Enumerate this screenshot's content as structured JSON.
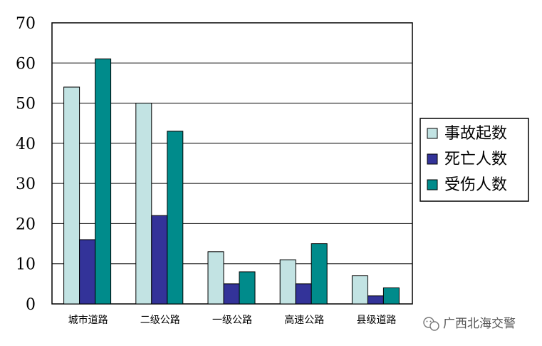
{
  "chart_data": {
    "type": "bar",
    "categories": [
      "城市道路",
      "二级公路",
      "一级公路",
      "高速公路",
      "县级道路"
    ],
    "series": [
      {
        "name": "事故起数",
        "values": [
          54,
          50,
          13,
          11,
          7
        ],
        "color": "#c2e3e3"
      },
      {
        "name": "死亡人数",
        "values": [
          16,
          22,
          5,
          5,
          2
        ],
        "color": "#333399"
      },
      {
        "name": "受伤人数",
        "values": [
          61,
          43,
          8,
          15,
          4
        ],
        "color": "#008b8b"
      }
    ],
    "ylim": [
      0,
      70
    ],
    "yticks": [
      "0",
      "10",
      "20",
      "30",
      "40",
      "50",
      "60",
      "70"
    ],
    "grid": true,
    "legend_position": "right"
  },
  "watermark": {
    "text": "广西北海交警",
    "icon": "wechat-icon"
  }
}
